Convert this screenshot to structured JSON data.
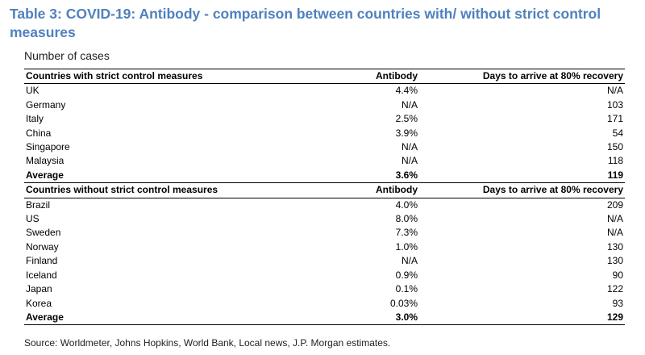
{
  "title": "Table 3: COVID-19: Antibody - comparison between countries with/ without strict control measures",
  "subtitle": "Number of cases",
  "groups": [
    {
      "header": {
        "country": "Countries with strict control measures",
        "antibody": "Antibody",
        "days": "Days to arrive at 80% recovery"
      },
      "rows": [
        {
          "country": "UK",
          "antibody": "4.4%",
          "days": "N/A"
        },
        {
          "country": "Germany",
          "antibody": "N/A",
          "days": "103"
        },
        {
          "country": "Italy",
          "antibody": "2.5%",
          "days": "171"
        },
        {
          "country": "China",
          "antibody": "3.9%",
          "days": "54"
        },
        {
          "country": "Singapore",
          "antibody": "N/A",
          "days": "150"
        },
        {
          "country": "Malaysia",
          "antibody": "N/A",
          "days": "118"
        }
      ],
      "average": {
        "label": "Average",
        "antibody": "3.6%",
        "days": "119"
      }
    },
    {
      "header": {
        "country": "Countries without strict control measures",
        "antibody": "Antibody",
        "days": "Days to arrive at 80% recovery"
      },
      "rows": [
        {
          "country": "Brazil",
          "antibody": "4.0%",
          "days": "209"
        },
        {
          "country": "US",
          "antibody": "8.0%",
          "days": "N/A"
        },
        {
          "country": "Sweden",
          "antibody": "7.3%",
          "days": "N/A"
        },
        {
          "country": "Norway",
          "antibody": "1.0%",
          "days": "130"
        },
        {
          "country": "Finland",
          "antibody": "N/A",
          "days": "130"
        },
        {
          "country": "Iceland",
          "antibody": "0.9%",
          "days": "90"
        },
        {
          "country": "Japan",
          "antibody": "0.1%",
          "days": "122"
        },
        {
          "country": "Korea",
          "antibody": "0.03%",
          "days": "93"
        }
      ],
      "average": {
        "label": "Average",
        "antibody": "3.0%",
        "days": "129"
      }
    }
  ],
  "source": "Source: Worldmeter, Johns Hopkins, World Bank, Local news, J.P. Morgan estimates.",
  "colors": {
    "title": "#4f81bd",
    "rule": "#000000"
  }
}
